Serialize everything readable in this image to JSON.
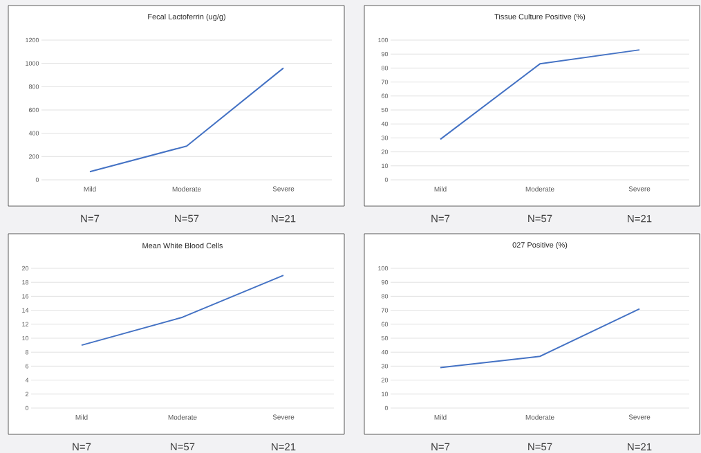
{
  "chart_data": [
    {
      "type": "line",
      "title": "Fecal Lactoferrin (ug/g)",
      "categories": [
        "Mild",
        "Moderate",
        "Severe"
      ],
      "values": [
        70,
        290,
        960
      ],
      "color": "#4472c4",
      "ylim": [
        0,
        1200
      ],
      "yticks": [
        0,
        200,
        400,
        600,
        800,
        1000,
        1200
      ],
      "grid": "y",
      "annotations": [
        "N=7",
        "N=57",
        "N=21"
      ]
    },
    {
      "type": "line",
      "title": "Tissue Culture Positive (%)",
      "categories": [
        "Mild",
        "Moderate",
        "Severe"
      ],
      "values": [
        29,
        83,
        93
      ],
      "color": "#4472c4",
      "ylim": [
        0,
        100
      ],
      "yticks": [
        0,
        10,
        20,
        30,
        40,
        50,
        60,
        70,
        80,
        90,
        100
      ],
      "grid": "y",
      "annotations": [
        "N=7",
        "N=57",
        "N=21"
      ]
    },
    {
      "type": "line",
      "title": "Mean White Blood Cells",
      "categories": [
        "Mild",
        "Moderate",
        "Severe"
      ],
      "values": [
        9,
        13,
        19
      ],
      "color": "#4472c4",
      "ylim": [
        0,
        20
      ],
      "yticks": [
        0,
        2,
        4,
        6,
        8,
        10,
        12,
        14,
        16,
        18,
        20
      ],
      "grid": "y",
      "annotations": [
        "N=7",
        "N=57",
        "N=21"
      ]
    },
    {
      "type": "line",
      "title": "027 Positive (%)",
      "categories": [
        "Mild",
        "Moderate",
        "Severe"
      ],
      "values": [
        29,
        37,
        71
      ],
      "color": "#4472c4",
      "ylim": [
        0,
        100
      ],
      "yticks": [
        0,
        10,
        20,
        30,
        40,
        50,
        60,
        70,
        80,
        90,
        100
      ],
      "grid": "y",
      "annotations": [
        "N=7",
        "N=57",
        "N=21"
      ]
    }
  ]
}
